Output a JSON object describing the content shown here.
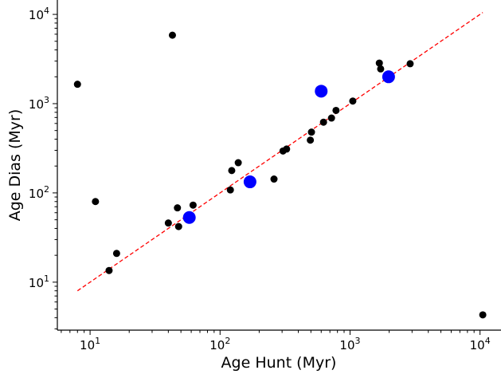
{
  "chart_data": {
    "type": "scatter",
    "title": "",
    "xlabel": "Age Hunt (Myr)",
    "ylabel": "Age Dias (Myr)",
    "xscale": "log",
    "yscale": "log",
    "xlim": [
      5.6,
      14500
    ],
    "ylim": [
      2.9,
      14500
    ],
    "x_ticks": [
      {
        "value": 10,
        "base": "10",
        "exp": "1"
      },
      {
        "value": 100,
        "base": "10",
        "exp": "2"
      },
      {
        "value": 1000,
        "base": "10",
        "exp": "3"
      },
      {
        "value": 10000,
        "base": "10",
        "exp": "4"
      }
    ],
    "y_ticks": [
      {
        "value": 10,
        "base": "10",
        "exp": "1"
      },
      {
        "value": 100,
        "base": "10",
        "exp": "2"
      },
      {
        "value": 1000,
        "base": "10",
        "exp": "3"
      },
      {
        "value": 10000,
        "base": "10",
        "exp": "4"
      }
    ],
    "grid": false,
    "legend": "none",
    "series": [
      {
        "color": "#000000",
        "marker_size": "small",
        "points": [
          {
            "x": 8,
            "y": 1650
          },
          {
            "x": 11,
            "y": 80
          },
          {
            "x": 14,
            "y": 13.5
          },
          {
            "x": 16,
            "y": 21
          },
          {
            "x": 40,
            "y": 46
          },
          {
            "x": 43,
            "y": 5850
          },
          {
            "x": 47,
            "y": 68
          },
          {
            "x": 48,
            "y": 42
          },
          {
            "x": 62,
            "y": 73
          },
          {
            "x": 120,
            "y": 108
          },
          {
            "x": 123,
            "y": 178
          },
          {
            "x": 138,
            "y": 218
          },
          {
            "x": 260,
            "y": 143
          },
          {
            "x": 305,
            "y": 295
          },
          {
            "x": 325,
            "y": 310
          },
          {
            "x": 495,
            "y": 390
          },
          {
            "x": 505,
            "y": 480
          },
          {
            "x": 625,
            "y": 620
          },
          {
            "x": 720,
            "y": 690
          },
          {
            "x": 780,
            "y": 840
          },
          {
            "x": 1050,
            "y": 1070
          },
          {
            "x": 1680,
            "y": 2850
          },
          {
            "x": 1720,
            "y": 2450
          },
          {
            "x": 2900,
            "y": 2800
          },
          {
            "x": 10500,
            "y": 4.3
          }
        ]
      },
      {
        "color": "#0000ff",
        "marker_size": "large",
        "points": [
          {
            "x": 58,
            "y": 53
          },
          {
            "x": 170,
            "y": 133
          },
          {
            "x": 600,
            "y": 1380
          },
          {
            "x": 1980,
            "y": 2000
          }
        ]
      }
    ],
    "reference_line": {
      "color": "#ff0000",
      "style": "dashed",
      "x": [
        8,
        10500
      ],
      "y": [
        8,
        10500
      ]
    }
  }
}
